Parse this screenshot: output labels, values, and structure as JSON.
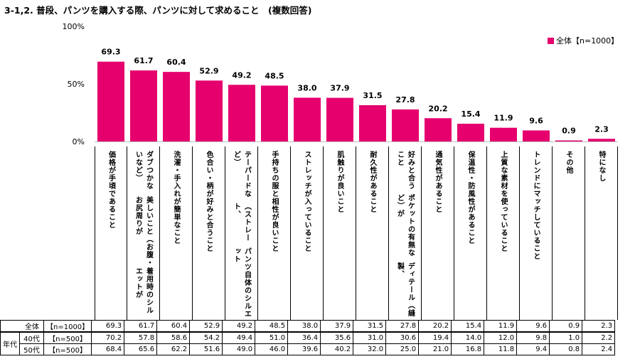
{
  "title": "3-1,2. 普段、パンツを購入する際、パンツに対して求めること　(複数回答)",
  "legend": {
    "color": "#e5006e",
    "label": "全体【n=1000】"
  },
  "chart_data": {
    "type": "bar",
    "yticks": [
      "100%",
      "50%",
      "0%"
    ],
    "ylim": [
      0,
      100
    ],
    "grid": false,
    "legend_position": "top-right",
    "categories": [
      "価格が手頃であること",
      "着用時のシルエットが美しいこと（お腹・お尻周りがダブつかないなど）",
      "洗濯・手入れが簡単なこと",
      "色合い・柄が好みと合うこと",
      "パンツ自体のシルエット（ストレート、テーパードなど）",
      "手持ちの服と相性が良いこと",
      "ストレッチが入っていること",
      "肌触りが良いこと",
      "耐久性があること",
      "ディテール（縫製、ポケットの有無など）が好みと合うこと",
      "通気性があること",
      "保温性・防風性があること",
      "上質な素材を使っていること",
      "トレンドにマッチしていること",
      "その他",
      "特になし"
    ],
    "series": [
      {
        "name": "全体【n=1000】",
        "values": [
          69.3,
          61.7,
          60.4,
          52.9,
          49.2,
          48.5,
          38.0,
          37.9,
          31.5,
          27.8,
          20.2,
          15.4,
          11.9,
          9.6,
          0.9,
          2.3
        ]
      }
    ],
    "data_labels": [
      "69.3",
      "61.7",
      "60.4",
      "52.9",
      "49.2",
      "48.5",
      "38.0",
      "37.9",
      "31.5",
      "27.8",
      "20.2",
      "15.4",
      "11.9",
      "9.6",
      "0.9",
      "2.3"
    ]
  },
  "category_wrapped": [
    [
      "価格が手頃であること"
    ],
    [
      "ダブつかないなど）",
      "美しいこと（お腹・お尻周りが",
      "着用時のシルエットが"
    ],
    [
      "洗濯・手入れが簡単なこと"
    ],
    [
      "色合い・柄が好みと合うこと"
    ],
    [
      "テーパードなど）",
      "（ストレート、",
      "パンツ自体のシルエット"
    ],
    [
      "手持ちの服と相性が良いこと"
    ],
    [
      "ストレッチが入っていること"
    ],
    [
      "肌触りが良いこと"
    ],
    [
      "耐久性があること"
    ],
    [
      "好みと合うこと",
      "ポケットの有無など）が",
      "ディテール（縫製、"
    ],
    [
      "通気性があること"
    ],
    [
      "保温性・防風性があること"
    ],
    [
      "上質な素材を使っていること"
    ],
    [
      "トレンドにマッチしていること"
    ],
    [
      "その他"
    ],
    [
      "特になし"
    ]
  ],
  "table": {
    "era_label": "年代",
    "rows": [
      {
        "group": "全体",
        "n": "【n=1000】",
        "values": [
          "69.3",
          "61.7",
          "60.4",
          "52.9",
          "49.2",
          "48.5",
          "38.0",
          "37.9",
          "31.5",
          "27.8",
          "20.2",
          "15.4",
          "11.9",
          "9.6",
          "0.9",
          "2.3"
        ]
      },
      {
        "group": "40代",
        "n": "【n=500】",
        "values": [
          "70.2",
          "57.8",
          "58.6",
          "54.2",
          "49.4",
          "51.0",
          "36.4",
          "35.6",
          "31.0",
          "30.6",
          "19.4",
          "14.0",
          "12.0",
          "9.8",
          "1.0",
          "2.2"
        ]
      },
      {
        "group": "50代",
        "n": "【n=500】",
        "values": [
          "68.4",
          "65.6",
          "62.2",
          "51.6",
          "49.0",
          "46.0",
          "39.6",
          "40.2",
          "32.0",
          "25.0",
          "21.0",
          "16.8",
          "11.8",
          "9.4",
          "0.8",
          "2.4"
        ]
      }
    ]
  }
}
